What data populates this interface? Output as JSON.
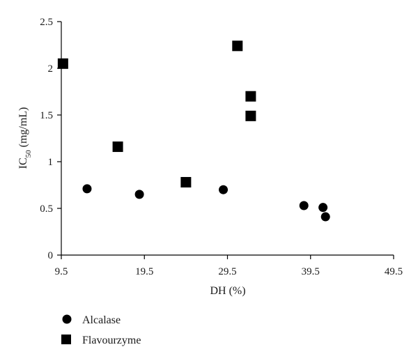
{
  "chart_data": {
    "type": "scatter",
    "title": "",
    "xlabel": "DH (%)",
    "ylabel": {
      "main": "IC",
      "sub": "50",
      "unit": " (mg/mL)"
    },
    "xlim": [
      9.5,
      49.5
    ],
    "ylim": [
      0,
      2.5
    ],
    "xticks": [
      "9.5",
      "19.5",
      "29.5",
      "39.5",
      "49.5"
    ],
    "yticks": [
      "0",
      "0.5",
      "1",
      "1.5",
      "2",
      "2.5"
    ],
    "grid": false,
    "legend_position": "bottom-left",
    "series": [
      {
        "name": "Alcalase",
        "marker": "circle",
        "color": "#000000",
        "points": [
          {
            "x": 12.6,
            "y": 0.71
          },
          {
            "x": 18.9,
            "y": 0.65
          },
          {
            "x": 29.0,
            "y": 0.7
          },
          {
            "x": 38.7,
            "y": 0.53
          },
          {
            "x": 41.0,
            "y": 0.51
          },
          {
            "x": 41.3,
            "y": 0.41
          }
        ]
      },
      {
        "name": "Flavourzyme",
        "marker": "square",
        "color": "#000000",
        "points": [
          {
            "x": 9.7,
            "y": 2.05
          },
          {
            "x": 16.3,
            "y": 1.16
          },
          {
            "x": 24.5,
            "y": 0.78
          },
          {
            "x": 30.7,
            "y": 2.24
          },
          {
            "x": 32.3,
            "y": 1.7
          },
          {
            "x": 32.3,
            "y": 1.49
          }
        ]
      }
    ]
  }
}
